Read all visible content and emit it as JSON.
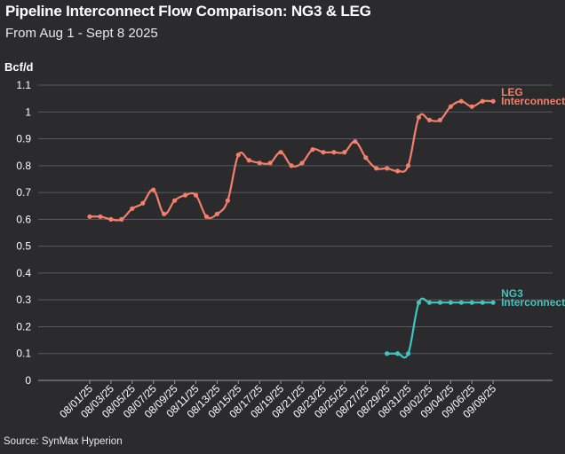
{
  "header": {
    "title": "Pipeline Interconnect Flow Comparison: NG3 & LEG",
    "subtitle": "From Aug 1 - Sept 8 2025"
  },
  "footer": {
    "source": "Source: SynMax Hyperion"
  },
  "colors": {
    "background": "#2b2b2e",
    "grid": "#5a5a5e",
    "LEG": "#f47f6b",
    "NG3": "#3fc5c0"
  },
  "chart_data": {
    "type": "line",
    "title": "Pipeline Interconnect Flow Comparison: NG3 & LEG",
    "subtitle": "From Aug 1 - Sept 8 2025",
    "ylabel": "Bcf/d",
    "xlabel": "",
    "ylim": [
      0,
      1.1
    ],
    "yticks": [
      "0",
      "0.1",
      "0.2",
      "0.3",
      "0.4",
      "0.5",
      "0.6",
      "0.7",
      "0.8",
      "0.9",
      "1",
      "1.1"
    ],
    "grid": true,
    "x": [
      "08/01/25",
      "08/02/25",
      "08/03/25",
      "08/04/25",
      "08/05/25",
      "08/06/25",
      "08/07/25",
      "08/08/25",
      "08/09/25",
      "08/10/25",
      "08/11/25",
      "08/12/25",
      "08/13/25",
      "08/14/25",
      "08/15/25",
      "08/16/25",
      "08/17/25",
      "08/18/25",
      "08/19/25",
      "08/20/25",
      "08/21/25",
      "08/22/25",
      "08/23/25",
      "08/24/25",
      "08/25/25",
      "08/26/25",
      "08/27/25",
      "08/28/25",
      "08/29/25",
      "08/30/25",
      "08/31/25",
      "09/01/25",
      "09/02/25",
      "09/03/25",
      "09/04/25",
      "09/05/25",
      "09/06/25",
      "09/07/25",
      "09/08/25"
    ],
    "xtick_labels": [
      "08/01/25",
      "08/03/25",
      "08/05/25",
      "08/07/25",
      "08/09/25",
      "08/11/25",
      "08/13/25",
      "08/15/25",
      "08/17/25",
      "08/19/25",
      "08/21/25",
      "08/23/25",
      "08/25/25",
      "08/27/25",
      "08/29/25",
      "08/31/25",
      "09/02/25",
      "09/04/25",
      "09/06/25",
      "09/08/25"
    ],
    "series": [
      {
        "name": "LEG Interconnect",
        "label_lines": [
          "LEG",
          "Interconnect"
        ],
        "color": "#f47f6b",
        "values": [
          0.61,
          0.61,
          0.6,
          0.6,
          0.64,
          0.66,
          0.71,
          0.62,
          0.67,
          0.69,
          0.69,
          0.61,
          0.62,
          0.67,
          0.84,
          0.82,
          0.81,
          0.81,
          0.85,
          0.8,
          0.81,
          0.86,
          0.85,
          0.85,
          0.85,
          0.89,
          0.83,
          0.79,
          0.79,
          0.78,
          0.8,
          0.98,
          0.97,
          0.97,
          1.02,
          1.04,
          1.02,
          1.04,
          1.04
        ]
      },
      {
        "name": "NG3 Interconnect",
        "label_lines": [
          "NG3",
          "Interconnect"
        ],
        "color": "#3fc5c0",
        "values": [
          null,
          null,
          null,
          null,
          null,
          null,
          null,
          null,
          null,
          null,
          null,
          null,
          null,
          null,
          null,
          null,
          null,
          null,
          null,
          null,
          null,
          null,
          null,
          null,
          null,
          null,
          null,
          null,
          0.1,
          0.1,
          0.1,
          0.29,
          0.29,
          0.29,
          0.29,
          0.29,
          0.29,
          0.29,
          0.29
        ]
      }
    ]
  }
}
